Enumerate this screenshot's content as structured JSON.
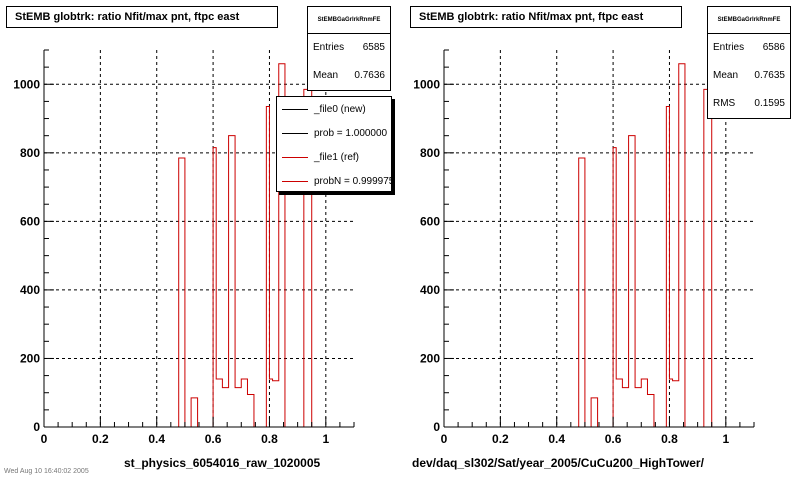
{
  "pads": [
    {
      "title": "StEMB globtrk: ratio Nfit/max pnt, ftpc east",
      "stats": {
        "name": "StEMBGaGrlrkRnmFE",
        "rows": [
          {
            "label": "Entries",
            "value": "6585"
          },
          {
            "label": "Mean",
            "value": "0.7636"
          }
        ]
      },
      "legend": [
        {
          "label": "_file0 (new)",
          "color": "#000000"
        },
        {
          "label": "prob = 1.000000",
          "color": "#000000"
        },
        {
          "label": "_file1 (ref)",
          "color": "#cc0000"
        },
        {
          "label": "probN = 0.999975",
          "color": "#cc0000"
        }
      ],
      "xlabel": "st_physics_6054016_raw_1020005"
    },
    {
      "title": "StEMB globtrk: ratio Nfit/max pnt, ftpc east",
      "stats": {
        "name": "StEMBGaGrlrkRnmFE",
        "rows": [
          {
            "label": "Entries",
            "value": "6586"
          },
          {
            "label": "Mean",
            "value": "0.7635"
          },
          {
            "label": "RMS",
            "value": "0.1595"
          }
        ]
      },
      "xlabel": "dev/daq_sl302/Sat/year_2005/CuCu200_HighTower/"
    }
  ],
  "footer": "Wed Aug 10 16:40:02 2005",
  "colors": {
    "hist": "#cc0000",
    "axis": "#000000"
  },
  "chart_data": [
    {
      "type": "bar",
      "style": "step-histogram",
      "title": "StEMB globtrk: ratio Nfit/max pnt, ftpc east",
      "xlabel": "st_physics_6054016_raw_1020005",
      "ylabel": "",
      "xlim": [
        0,
        1.1
      ],
      "ylim": [
        0,
        1100
      ],
      "xticks": [
        0,
        0.2,
        0.4,
        0.6,
        0.8,
        1
      ],
      "yticks": [
        0,
        200,
        400,
        600,
        800,
        1000
      ],
      "grid": true,
      "legend_position": "top-right",
      "bin_edges": [
        0.0,
        0.05,
        0.1,
        0.15,
        0.2,
        0.25,
        0.3,
        0.35,
        0.4,
        0.45,
        0.478,
        0.5,
        0.522,
        0.545,
        0.567,
        0.6,
        0.611,
        0.633,
        0.655,
        0.678,
        0.7,
        0.722,
        0.745,
        0.767,
        0.789,
        0.8,
        0.811,
        0.833,
        0.855,
        0.878,
        0.9,
        0.922,
        0.95,
        0.978,
        1.0,
        1.022,
        1.05,
        1.1
      ],
      "series": [
        {
          "name": "_file1 (ref)",
          "color": "#cc0000",
          "values": [
            0,
            0,
            0,
            0,
            0,
            0,
            0,
            0,
            0,
            0,
            785,
            0,
            85,
            0,
            0,
            815,
            140,
            115,
            850,
            115,
            140,
            95,
            0,
            0,
            935,
            140,
            135,
            1060,
            0,
            0,
            0,
            985,
            0,
            0,
            0,
            0,
            0
          ]
        }
      ]
    },
    {
      "type": "bar",
      "style": "step-histogram",
      "title": "StEMB globtrk: ratio Nfit/max pnt, ftpc east",
      "xlabel": "dev/daq_sl302/Sat/year_2005/CuCu200_HighTower/",
      "ylabel": "",
      "xlim": [
        0,
        1.1
      ],
      "ylim": [
        0,
        1100
      ],
      "xticks": [
        0,
        0.2,
        0.4,
        0.6,
        0.8,
        1
      ],
      "yticks": [
        0,
        200,
        400,
        600,
        800,
        1000
      ],
      "grid": true,
      "bin_edges": [
        0.0,
        0.05,
        0.1,
        0.15,
        0.2,
        0.25,
        0.3,
        0.35,
        0.4,
        0.45,
        0.478,
        0.5,
        0.522,
        0.545,
        0.567,
        0.6,
        0.611,
        0.633,
        0.655,
        0.678,
        0.7,
        0.722,
        0.745,
        0.767,
        0.789,
        0.8,
        0.811,
        0.833,
        0.855,
        0.878,
        0.9,
        0.922,
        0.95,
        0.978,
        1.0,
        1.022,
        1.05,
        1.1
      ],
      "series": [
        {
          "name": "",
          "color": "#cc0000",
          "values": [
            0,
            0,
            0,
            0,
            0,
            0,
            0,
            0,
            0,
            0,
            785,
            0,
            85,
            0,
            0,
            815,
            140,
            115,
            850,
            115,
            140,
            95,
            0,
            0,
            935,
            140,
            135,
            1060,
            0,
            0,
            0,
            985,
            0,
            0,
            0,
            0,
            0
          ]
        }
      ]
    }
  ]
}
